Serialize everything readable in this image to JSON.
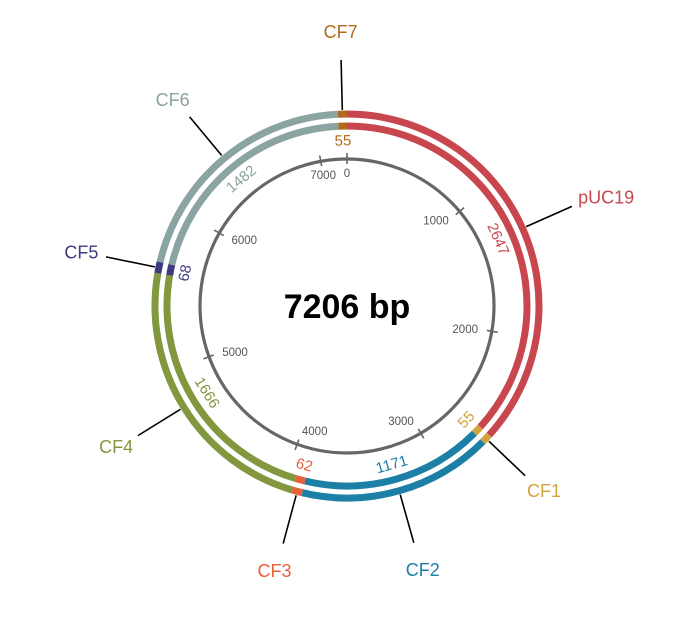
{
  "map": {
    "total_length": 7206,
    "total_label": "7206 bp",
    "backbone_color": "#666666",
    "ticks": [
      {
        "pos": 0,
        "label": "0"
      },
      {
        "pos": 1000,
        "label": "1000"
      },
      {
        "pos": 2000,
        "label": "2000"
      },
      {
        "pos": 3000,
        "label": "3000"
      },
      {
        "pos": 4000,
        "label": "4000"
      },
      {
        "pos": 5000,
        "label": "5000"
      },
      {
        "pos": 6000,
        "label": "6000"
      },
      {
        "pos": 7000,
        "label": "7000"
      }
    ],
    "segments": [
      {
        "name": "pUC19",
        "slug": "puc19",
        "start": 0,
        "end": 2647,
        "length_label": "2647",
        "color": "#c8474e"
      },
      {
        "name": "CF1",
        "slug": "cf1",
        "start": 2647,
        "end": 2702,
        "length_label": "55",
        "color": "#d4a23a"
      },
      {
        "name": "CF2",
        "slug": "cf2",
        "start": 2702,
        "end": 3873,
        "length_label": "1171",
        "color": "#1b7fa6"
      },
      {
        "name": "CF3",
        "slug": "cf3",
        "start": 3873,
        "end": 3935,
        "length_label": "62",
        "color": "#e8603c"
      },
      {
        "name": "CF4",
        "slug": "cf4",
        "start": 3935,
        "end": 5601,
        "length_label": "1666",
        "color": "#83973f"
      },
      {
        "name": "CF5",
        "slug": "cf5",
        "start": 5601,
        "end": 5669,
        "length_label": "68",
        "color": "#3d3b7e"
      },
      {
        "name": "CF6",
        "slug": "cf6",
        "start": 5669,
        "end": 7151,
        "length_label": "1482",
        "color": "#8aa4a2"
      },
      {
        "name": "CF7",
        "slug": "cf7",
        "start": 7151,
        "end": 7206,
        "length_label": "55",
        "color": "#b26b1e"
      }
    ]
  }
}
